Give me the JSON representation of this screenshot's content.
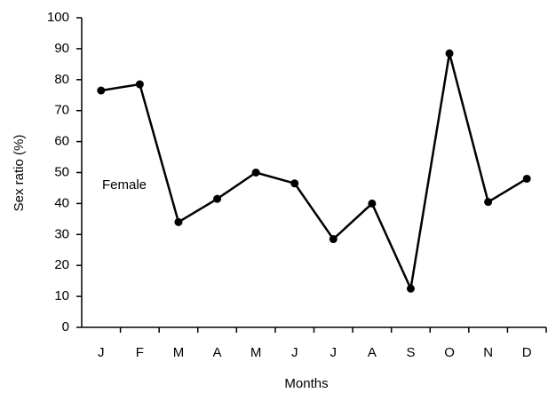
{
  "chart_data": {
    "type": "line",
    "x_label": "Months",
    "y_label": "Sex ratio (%)",
    "annotation": "Female",
    "categories": [
      "J",
      "F",
      "M",
      "A",
      "M",
      "J",
      "J",
      "A",
      "S",
      "O",
      "N",
      "D"
    ],
    "series": [
      {
        "color": "#000000",
        "values": [
          76.5,
          78.5,
          34,
          41.5,
          50,
          46.5,
          28.5,
          40,
          12.5,
          88.5,
          40.5,
          48
        ]
      }
    ],
    "ylim": [
      0,
      100
    ],
    "yticks": [
      0,
      10,
      20,
      30,
      40,
      50,
      60,
      70,
      80,
      90,
      100
    ],
    "grid": false
  }
}
